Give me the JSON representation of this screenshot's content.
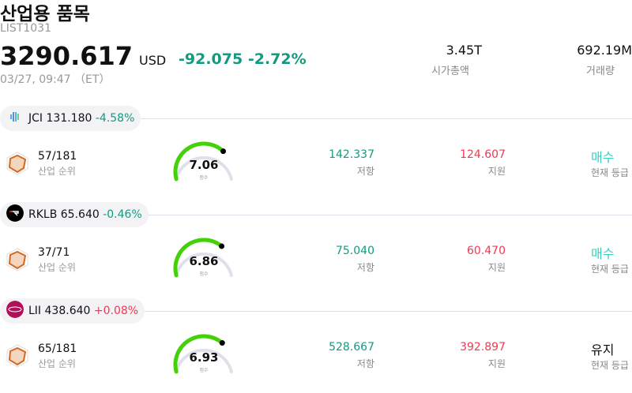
{
  "header": {
    "title": "산업용 품목",
    "code": "LIST1031",
    "price": "3290.617",
    "currency": "USD",
    "change": "-92.075",
    "change_pct": "-2.72%",
    "time": "03/27, 09:47 （ET）",
    "market_cap": {
      "value": "3.45T",
      "label": "시가총액"
    },
    "volume": {
      "value": "692.19M",
      "label": "거래량"
    }
  },
  "colors": {
    "up": "#f03a50",
    "down": "#139a80",
    "buy": "#3ccfc0",
    "gauge_fill": "#44d10a",
    "gauge_track": "#e0e0ea",
    "radar": "#d2691e"
  },
  "stocks": [
    {
      "ticker": "JCI",
      "price": "131.180",
      "change": "-4.58%",
      "dir": "down",
      "logo": "jci-logo-icon",
      "rank": "57/181",
      "rank_label": "산업 순위",
      "score": "7.06",
      "score_value": 7.06,
      "score_label": "점수",
      "resistance": "142.337",
      "resistance_label": "저항",
      "support": "124.607",
      "support_label": "지원",
      "grade": "매수",
      "grade_label": "현재 등급"
    },
    {
      "ticker": "RKLB",
      "price": "65.640",
      "change": "-0.46%",
      "dir": "down",
      "logo": "rklb-logo-icon",
      "rank": "37/71",
      "rank_label": "산업 순위",
      "score": "6.86",
      "score_value": 6.86,
      "score_label": "점수",
      "resistance": "75.040",
      "resistance_label": "저항",
      "support": "60.470",
      "support_label": "지원",
      "grade": "매수",
      "grade_label": "현재 등급"
    },
    {
      "ticker": "LII",
      "price": "438.640",
      "change": "+0.08%",
      "dir": "up",
      "logo": "lii-logo-icon",
      "rank": "65/181",
      "rank_label": "산업 순위",
      "score": "6.93",
      "score_value": 6.93,
      "score_label": "점수",
      "resistance": "528.667",
      "resistance_label": "저항",
      "support": "392.897",
      "support_label": "지원",
      "grade": "유지",
      "grade_label": "현재 등급"
    }
  ]
}
